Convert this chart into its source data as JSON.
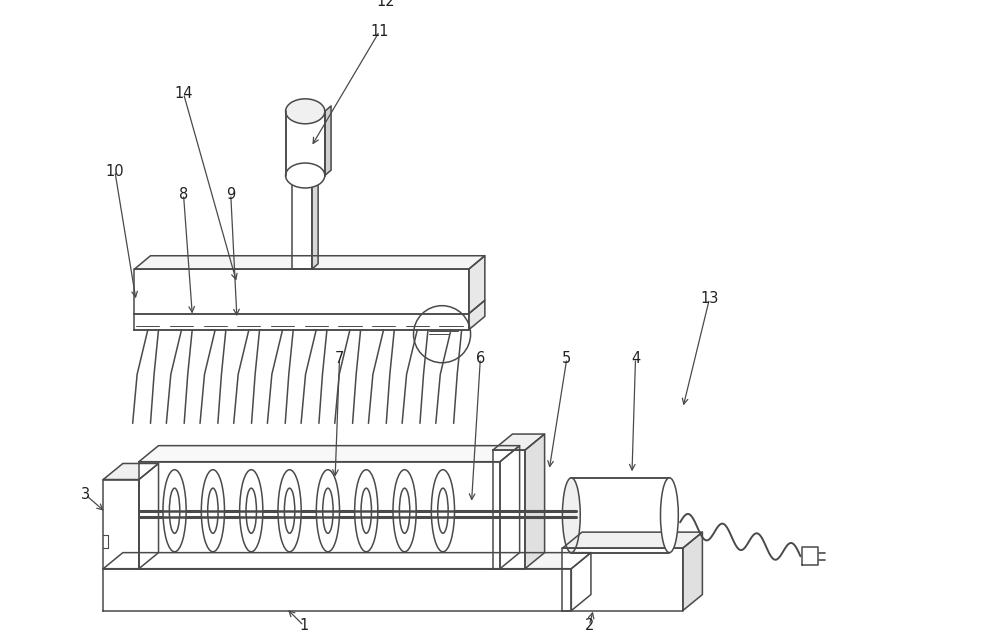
{
  "bg_color": "#ffffff",
  "lc": "#4a4a4a",
  "lw": 1.1,
  "fig_w": 10.0,
  "fig_h": 6.37,
  "dpi": 100
}
